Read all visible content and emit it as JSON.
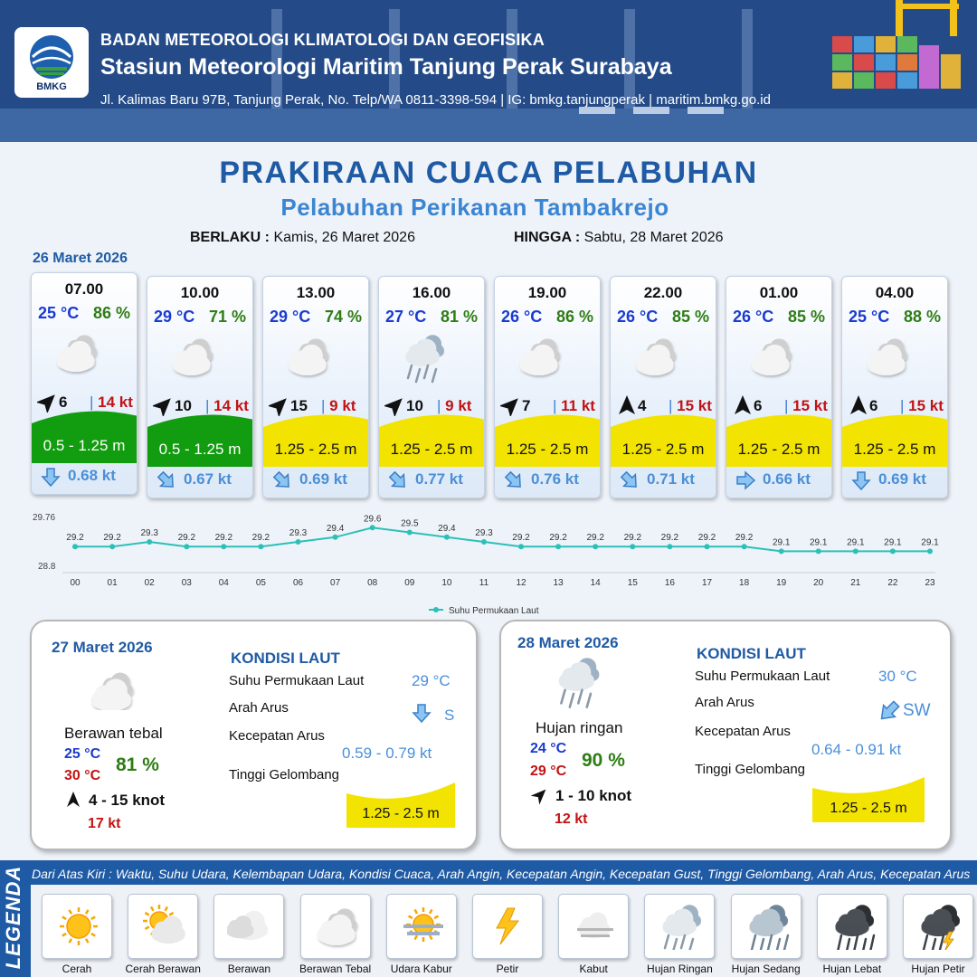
{
  "header": {
    "logo_text": "BMKG",
    "org": "BADAN METEOROLOGI KLIMATOLOGI DAN GEOFISIKA",
    "station": "Stasiun Meteorologi Maritim Tanjung Perak Surabaya",
    "address": "Jl. Kalimas Baru 97B, Tanjung Perak, No. Telp/WA 0811-3398-594 | IG: bmkg.tanjungperak | maritim.bmkg.go.id"
  },
  "title": "PRAKIRAAN CUACA PELABUHAN",
  "subtitle": "Pelabuhan Perikanan Tambakrejo",
  "period": {
    "from_label": "BERLAKU :",
    "from_value": "Kamis, 26 Maret 2026",
    "to_label": "HINGGA :",
    "to_value": "Sabtu, 28 Maret 2026"
  },
  "day1_date": "26 Maret 2026",
  "forecasts": [
    {
      "time": "07.00",
      "temp": "25 °C",
      "hum": "86 %",
      "icon": "berawan-tebal-icon",
      "wind_dir_deg": 45,
      "wind": "6",
      "gust": "14 kt",
      "wave": "0.5 - 1.25 m",
      "wave_color": "#129c0f",
      "cur_dir_deg": 180,
      "cur_speed": "0.68 kt"
    },
    {
      "time": "10.00",
      "temp": "29 °C",
      "hum": "71 %",
      "icon": "berawan-tebal-icon",
      "wind_dir_deg": 45,
      "wind": "10",
      "gust": "14 kt",
      "wave": "0.5 - 1.25 m",
      "wave_color": "#129c0f",
      "cur_dir_deg": 135,
      "cur_speed": "0.67 kt"
    },
    {
      "time": "13.00",
      "temp": "29 °C",
      "hum": "74 %",
      "icon": "berawan-tebal-icon",
      "wind_dir_deg": 45,
      "wind": "15",
      "gust": "9 kt",
      "wave": "1.25 - 2.5 m",
      "wave_color": "#f2e300",
      "cur_dir_deg": 135,
      "cur_speed": "0.69 kt"
    },
    {
      "time": "16.00",
      "temp": "27 °C",
      "hum": "81 %",
      "icon": "hujan-ringan-icon",
      "wind_dir_deg": 45,
      "wind": "10",
      "gust": "9 kt",
      "wave": "1.25 - 2.5 m",
      "wave_color": "#f2e300",
      "cur_dir_deg": 135,
      "cur_speed": "0.77 kt"
    },
    {
      "time": "19.00",
      "temp": "26 °C",
      "hum": "86 %",
      "icon": "berawan-tebal-icon",
      "wind_dir_deg": 45,
      "wind": "7",
      "gust": "11 kt",
      "wave": "1.25 - 2.5 m",
      "wave_color": "#f2e300",
      "cur_dir_deg": 135,
      "cur_speed": "0.76 kt"
    },
    {
      "time": "22.00",
      "temp": "26 °C",
      "hum": "85 %",
      "icon": "berawan-tebal-icon",
      "wind_dir_deg": 0,
      "wind": "4",
      "gust": "15 kt",
      "wave": "1.25 - 2.5 m",
      "wave_color": "#f2e300",
      "cur_dir_deg": 135,
      "cur_speed": "0.71 kt"
    },
    {
      "time": "01.00",
      "temp": "26 °C",
      "hum": "85 %",
      "icon": "berawan-tebal-icon",
      "wind_dir_deg": 0,
      "wind": "6",
      "gust": "15 kt",
      "wave": "1.25 - 2.5 m",
      "wave_color": "#f2e300",
      "cur_dir_deg": 90,
      "cur_speed": "0.66 kt"
    },
    {
      "time": "04.00",
      "temp": "25 °C",
      "hum": "88 %",
      "icon": "berawan-tebal-icon",
      "wind_dir_deg": 0,
      "wind": "6",
      "gust": "15 kt",
      "wave": "1.25 - 2.5 m",
      "wave_color": "#f2e300",
      "cur_dir_deg": 180,
      "cur_speed": "0.69 kt"
    }
  ],
  "chart_data": {
    "type": "line",
    "x": [
      "00",
      "01",
      "02",
      "03",
      "04",
      "05",
      "06",
      "07",
      "08",
      "09",
      "10",
      "11",
      "12",
      "13",
      "14",
      "15",
      "16",
      "17",
      "18",
      "19",
      "20",
      "21",
      "22",
      "23"
    ],
    "series": [
      {
        "name": "Suhu Permukaan Laut",
        "values": [
          29.2,
          29.2,
          29.3,
          29.2,
          29.2,
          29.2,
          29.3,
          29.4,
          29.6,
          29.5,
          29.4,
          29.3,
          29.2,
          29.2,
          29.2,
          29.2,
          29.2,
          29.2,
          29.2,
          29.1,
          29.1,
          29.1,
          29.1,
          29.1
        ],
        "color": "#2cc0b8"
      }
    ],
    "ylim": [
      28.8,
      29.76
    ],
    "ytick_labels": [
      "29.76",
      "28.8"
    ],
    "grid": false,
    "legend": "bottom-center"
  },
  "day2": {
    "date": "27 Maret 2026",
    "condition": "Berawan tebal",
    "icon": "berawan-tebal-icon",
    "tmin": "25 °C",
    "tmax": "30 °C",
    "hum": "81 %",
    "wind": "4  - 15 knot",
    "wind_dir_deg": 0,
    "gust": "17 kt",
    "sea_title": "KONDISI LAUT",
    "sst_label": "Suhu Permukaan Laut",
    "sst": "29 °C",
    "cur_dir_label": "Arah Arus",
    "cur_dir": "S",
    "cur_dir_deg": 180,
    "cur_speed_label": "Kecepatan Arus",
    "cur_speed": "0.59  - 0.79 kt",
    "wave_label": "Tinggi Gelombang",
    "wave": "1.25 - 2.5 m",
    "wave_color": "#f2e300"
  },
  "day3": {
    "date": "28 Maret 2026",
    "condition": "Hujan ringan",
    "icon": "hujan-ringan-icon",
    "tmin": "24 °C",
    "tmax": "29 °C",
    "hum": "90 %",
    "wind": "1  - 10 knot",
    "wind_dir_deg": 45,
    "gust": "12 kt",
    "sea_title": "KONDISI LAUT",
    "sst_label": "Suhu Permukaan Laut",
    "sst": "30 °C",
    "cur_dir_label": "Arah Arus",
    "cur_dir": "SW",
    "cur_dir_deg": 225,
    "cur_speed_label": "Kecepatan Arus",
    "cur_speed": "0.64  - 0.91 kt",
    "wave_label": "Tinggi Gelombang",
    "wave": "1.25 - 2.5 m",
    "wave_color": "#f2e300"
  },
  "legend": {
    "title": "LEGENDA",
    "note": "Dari Atas Kiri : Waktu, Suhu Udara, Kelembapan Udara, Kondisi Cuaca, Arah Angin, Kecepatan Angin, Kecepatan Gust, Tinggi Gelombang, Arah Arus, Kecepatan Arus",
    "items": [
      {
        "label": "Cerah",
        "icon": "cerah-icon"
      },
      {
        "label": "Cerah Berawan",
        "icon": "cerah-berawan-icon"
      },
      {
        "label": "Berawan",
        "icon": "berawan-icon"
      },
      {
        "label": "Berawan Tebal",
        "icon": "berawan-tebal-icon"
      },
      {
        "label": "Udara Kabur",
        "icon": "udara-kabur-icon"
      },
      {
        "label": "Petir",
        "icon": "petir-icon"
      },
      {
        "label": "Kabut",
        "icon": "kabut-icon"
      },
      {
        "label": "Hujan Ringan",
        "icon": "hujan-ringan-icon"
      },
      {
        "label": "Hujan Sedang",
        "icon": "hujan-sedang-icon"
      },
      {
        "label": "Hujan Lebat",
        "icon": "hujan-lebat-icon"
      },
      {
        "label": "Hujan Petir",
        "icon": "hujan-petir-icon"
      }
    ]
  }
}
